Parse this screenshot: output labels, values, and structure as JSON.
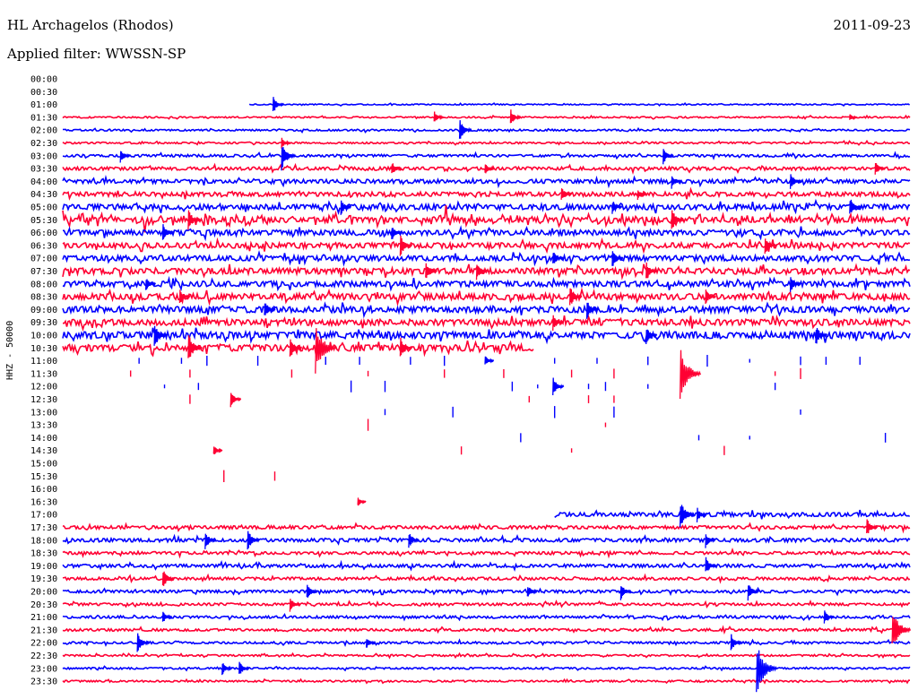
{
  "header": {
    "station": "HL Archagelos (Rhodos)",
    "date": "2011-09-23",
    "filter": "Applied filter: WWSSN-SP"
  },
  "chart_data": {
    "type": "helicorder",
    "ylabel": "HHZ - 50000",
    "colors": {
      "blue": "#0000ff",
      "red": "#ff0033"
    },
    "rows": [
      {
        "label": "00:00",
        "color": "blue",
        "data": false
      },
      {
        "label": "00:30",
        "color": "red",
        "data": false
      },
      {
        "label": "01:00",
        "color": "blue",
        "data": true,
        "start": 0.22,
        "level": 0.15
      },
      {
        "label": "01:30",
        "color": "red",
        "data": true,
        "level": 0.2
      },
      {
        "label": "02:00",
        "color": "blue",
        "data": true,
        "level": 0.25
      },
      {
        "label": "02:30",
        "color": "red",
        "data": true,
        "level": 0.25
      },
      {
        "label": "03:00",
        "color": "blue",
        "data": true,
        "level": 0.35
      },
      {
        "label": "03:30",
        "color": "red",
        "data": true,
        "level": 0.45
      },
      {
        "label": "04:00",
        "color": "blue",
        "data": true,
        "level": 0.55
      },
      {
        "label": "04:30",
        "color": "red",
        "data": true,
        "level": 0.6
      },
      {
        "label": "05:00",
        "color": "blue",
        "data": true,
        "level": 0.75
      },
      {
        "label": "05:30",
        "color": "red",
        "data": true,
        "level": 0.7,
        "gappy": true
      },
      {
        "label": "06:00",
        "color": "blue",
        "data": true,
        "level": 0.75
      },
      {
        "label": "06:30",
        "color": "red",
        "data": true,
        "level": 0.75
      },
      {
        "label": "07:00",
        "color": "blue",
        "data": true,
        "level": 0.75
      },
      {
        "label": "07:30",
        "color": "red",
        "data": true,
        "level": 0.85
      },
      {
        "label": "08:00",
        "color": "blue",
        "data": true,
        "level": 0.75
      },
      {
        "label": "08:30",
        "color": "red",
        "data": true,
        "level": 0.85
      },
      {
        "label": "09:00",
        "color": "blue",
        "data": true,
        "level": 0.85
      },
      {
        "label": "09:30",
        "color": "red",
        "data": true,
        "level": 0.85
      },
      {
        "label": "10:00",
        "color": "blue",
        "data": true,
        "level": 0.95
      },
      {
        "label": "10:30",
        "color": "red",
        "data": true,
        "level": 0.9,
        "end": 0.555
      },
      {
        "label": "11:00",
        "color": "blue",
        "data": false
      },
      {
        "label": "11:30",
        "color": "red",
        "data": false
      },
      {
        "label": "12:00",
        "color": "blue",
        "data": false
      },
      {
        "label": "12:30",
        "color": "red",
        "data": false
      },
      {
        "label": "13:00",
        "color": "blue",
        "data": false
      },
      {
        "label": "13:30",
        "color": "red",
        "data": false
      },
      {
        "label": "14:00",
        "color": "blue",
        "data": false
      },
      {
        "label": "14:30",
        "color": "red",
        "data": false
      },
      {
        "label": "15:00",
        "color": "blue",
        "data": false
      },
      {
        "label": "15:30",
        "color": "red",
        "data": false
      },
      {
        "label": "16:00",
        "color": "blue",
        "data": false
      },
      {
        "label": "16:30",
        "color": "red",
        "data": false
      },
      {
        "label": "17:00",
        "color": "blue",
        "data": true,
        "start": 0.58,
        "level": 0.55
      },
      {
        "label": "17:30",
        "color": "red",
        "data": true,
        "level": 0.45
      },
      {
        "label": "18:00",
        "color": "blue",
        "data": true,
        "level": 0.5
      },
      {
        "label": "18:30",
        "color": "red",
        "data": true,
        "level": 0.4
      },
      {
        "label": "19:00",
        "color": "blue",
        "data": true,
        "level": 0.45
      },
      {
        "label": "19:30",
        "color": "red",
        "data": true,
        "level": 0.4
      },
      {
        "label": "20:00",
        "color": "blue",
        "data": true,
        "level": 0.4
      },
      {
        "label": "20:30",
        "color": "red",
        "data": true,
        "level": 0.35
      },
      {
        "label": "21:00",
        "color": "blue",
        "data": true,
        "level": 0.35
      },
      {
        "label": "21:30",
        "color": "red",
        "data": true,
        "level": 0.35
      },
      {
        "label": "22:00",
        "color": "blue",
        "data": true,
        "level": 0.3
      },
      {
        "label": "22:30",
        "color": "red",
        "data": true,
        "level": 0.25
      },
      {
        "label": "23:00",
        "color": "blue",
        "data": true,
        "level": 0.25
      },
      {
        "label": "23:30",
        "color": "red",
        "data": true,
        "level": 0.25
      }
    ],
    "events": [
      {
        "row": "01:00",
        "x": 0.25,
        "amp": 10
      },
      {
        "row": "01:30",
        "x": 0.44,
        "amp": 7
      },
      {
        "row": "01:30",
        "x": 0.53,
        "amp": 9
      },
      {
        "row": "01:30",
        "x": 0.93,
        "amp": 4
      },
      {
        "row": "02:00",
        "x": 0.47,
        "amp": 12
      },
      {
        "row": "02:30",
        "x": 0.26,
        "amp": 6
      },
      {
        "row": "03:00",
        "x": 0.07,
        "amp": 8
      },
      {
        "row": "03:00",
        "x": 0.26,
        "amp": 16
      },
      {
        "row": "03:00",
        "x": 0.71,
        "amp": 9
      },
      {
        "row": "03:30",
        "x": 0.39,
        "amp": 8
      },
      {
        "row": "03:30",
        "x": 0.5,
        "amp": 7
      },
      {
        "row": "03:30",
        "x": 0.96,
        "amp": 8
      },
      {
        "row": "04:00",
        "x": 0.72,
        "amp": 8
      },
      {
        "row": "04:00",
        "x": 0.86,
        "amp": 10
      },
      {
        "row": "04:30",
        "x": 0.59,
        "amp": 9
      },
      {
        "row": "04:30",
        "x": 0.68,
        "amp": 6
      },
      {
        "row": "05:00",
        "x": 0.33,
        "amp": 9
      },
      {
        "row": "05:00",
        "x": 0.65,
        "amp": 8
      },
      {
        "row": "05:00",
        "x": 0.93,
        "amp": 11
      },
      {
        "row": "05:30",
        "x": 0.15,
        "amp": 12
      },
      {
        "row": "05:30",
        "x": 0.72,
        "amp": 12
      },
      {
        "row": "06:00",
        "x": 0.12,
        "amp": 10
      },
      {
        "row": "06:00",
        "x": 0.39,
        "amp": 9
      },
      {
        "row": "06:30",
        "x": 0.4,
        "amp": 12
      },
      {
        "row": "06:30",
        "x": 0.83,
        "amp": 10
      },
      {
        "row": "07:00",
        "x": 0.58,
        "amp": 9
      },
      {
        "row": "07:00",
        "x": 0.65,
        "amp": 10
      },
      {
        "row": "07:30",
        "x": 0.43,
        "amp": 11
      },
      {
        "row": "07:30",
        "x": 0.49,
        "amp": 10
      },
      {
        "row": "07:30",
        "x": 0.69,
        "amp": 10
      },
      {
        "row": "08:00",
        "x": 0.1,
        "amp": 8
      },
      {
        "row": "08:00",
        "x": 0.86,
        "amp": 9
      },
      {
        "row": "08:30",
        "x": 0.14,
        "amp": 9
      },
      {
        "row": "08:30",
        "x": 0.6,
        "amp": 12
      },
      {
        "row": "08:30",
        "x": 0.76,
        "amp": 9
      },
      {
        "row": "09:00",
        "x": 0.24,
        "amp": 10
      },
      {
        "row": "09:00",
        "x": 0.62,
        "amp": 11
      },
      {
        "row": "09:30",
        "x": 0.58,
        "amp": 9
      },
      {
        "row": "10:00",
        "x": 0.11,
        "amp": 13
      },
      {
        "row": "10:00",
        "x": 0.69,
        "amp": 10
      },
      {
        "row": "10:00",
        "x": 0.89,
        "amp": 11
      },
      {
        "row": "10:30",
        "x": 0.27,
        "amp": 12
      },
      {
        "row": "10:30",
        "x": 0.3,
        "amp": 28
      },
      {
        "row": "10:30",
        "x": 0.15,
        "amp": 16
      },
      {
        "row": "10:30",
        "x": 0.4,
        "amp": 12
      },
      {
        "row": "11:00",
        "x": 0.5,
        "amp": 6
      },
      {
        "row": "11:30",
        "x": 0.73,
        "amp": 28
      },
      {
        "row": "12:00",
        "x": 0.58,
        "amp": 10
      },
      {
        "row": "12:30",
        "x": 0.2,
        "amp": 9
      },
      {
        "row": "14:30",
        "x": 0.18,
        "amp": 6
      },
      {
        "row": "16:30",
        "x": 0.35,
        "amp": 5
      },
      {
        "row": "17:00",
        "x": 0.73,
        "amp": 16
      },
      {
        "row": "17:00",
        "x": 0.75,
        "amp": 8
      },
      {
        "row": "17:30",
        "x": 0.95,
        "amp": 10
      },
      {
        "row": "18:00",
        "x": 0.17,
        "amp": 10
      },
      {
        "row": "18:00",
        "x": 0.22,
        "amp": 12
      },
      {
        "row": "18:00",
        "x": 0.41,
        "amp": 9
      },
      {
        "row": "18:00",
        "x": 0.76,
        "amp": 8
      },
      {
        "row": "19:00",
        "x": 0.76,
        "amp": 10
      },
      {
        "row": "19:30",
        "x": 0.12,
        "amp": 11
      },
      {
        "row": "20:00",
        "x": 0.29,
        "amp": 10
      },
      {
        "row": "20:00",
        "x": 0.55,
        "amp": 8
      },
      {
        "row": "20:00",
        "x": 0.66,
        "amp": 9
      },
      {
        "row": "20:00",
        "x": 0.81,
        "amp": 10
      },
      {
        "row": "20:30",
        "x": 0.27,
        "amp": 8
      },
      {
        "row": "21:00",
        "x": 0.12,
        "amp": 7
      },
      {
        "row": "21:00",
        "x": 0.9,
        "amp": 8
      },
      {
        "row": "21:30",
        "x": 0.98,
        "amp": 24
      },
      {
        "row": "22:00",
        "x": 0.09,
        "amp": 12
      },
      {
        "row": "22:00",
        "x": 0.36,
        "amp": 7
      },
      {
        "row": "22:00",
        "x": 0.79,
        "amp": 10
      },
      {
        "row": "23:00",
        "x": 0.19,
        "amp": 8
      },
      {
        "row": "23:00",
        "x": 0.21,
        "amp": 9
      },
      {
        "row": "23:00",
        "x": 0.82,
        "amp": 28
      }
    ],
    "scatter_ticks": [
      {
        "row": "11:00",
        "xs": [
          0.09,
          0.14,
          0.17,
          0.23,
          0.31,
          0.35,
          0.41,
          0.45,
          0.58,
          0.63,
          0.69,
          0.76,
          0.81,
          0.87,
          0.9,
          0.94
        ]
      },
      {
        "row": "11:30",
        "xs": [
          0.08,
          0.15,
          0.27,
          0.36,
          0.45,
          0.52,
          0.6,
          0.65,
          0.84,
          0.87
        ]
      },
      {
        "row": "12:00",
        "xs": [
          0.12,
          0.16,
          0.34,
          0.38,
          0.53,
          0.56,
          0.62,
          0.64,
          0.69,
          0.84
        ]
      },
      {
        "row": "12:30",
        "xs": [
          0.15,
          0.55,
          0.62,
          0.65
        ]
      },
      {
        "row": "13:00",
        "xs": [
          0.38,
          0.46,
          0.58,
          0.65,
          0.87
        ]
      },
      {
        "row": "13:30",
        "xs": [
          0.36,
          0.64
        ]
      },
      {
        "row": "14:00",
        "xs": [
          0.54,
          0.75,
          0.81,
          0.97
        ]
      },
      {
        "row": "14:30",
        "xs": [
          0.47,
          0.6,
          0.78
        ]
      },
      {
        "row": "15:30",
        "xs": [
          0.19,
          0.25
        ]
      }
    ]
  }
}
